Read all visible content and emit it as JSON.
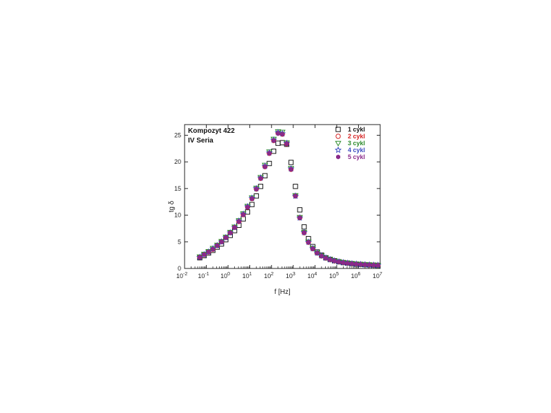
{
  "chart_data": {
    "type": "scatter",
    "xlabel": "f [Hz]",
    "ylabel": "tg δ",
    "xscale": "log",
    "xlim": [
      0.01,
      10000000
    ],
    "ylim": [
      0,
      27
    ],
    "x_ticks": [
      {
        "value": 0.01,
        "mantissa": "10",
        "exp": "-2"
      },
      {
        "value": 0.1,
        "mantissa": "10",
        "exp": "-1"
      },
      {
        "value": 1,
        "mantissa": "10",
        "exp": "0"
      },
      {
        "value": 10,
        "mantissa": "10",
        "exp": "1"
      },
      {
        "value": 100,
        "mantissa": "10",
        "exp": "2"
      },
      {
        "value": 1000,
        "mantissa": "10",
        "exp": "3"
      },
      {
        "value": 10000,
        "mantissa": "10",
        "exp": "4"
      },
      {
        "value": 100000,
        "mantissa": "10",
        "exp": "5"
      },
      {
        "value": 1000000,
        "mantissa": "10",
        "exp": "6"
      },
      {
        "value": 10000000,
        "mantissa": "10",
        "exp": "7"
      }
    ],
    "y_ticks": [
      0,
      5,
      10,
      15,
      20,
      25
    ],
    "annotations": [
      "Kompozyt 422",
      "IV Seria"
    ],
    "legend_position": "top-right",
    "grid": false,
    "x": [
      0.05,
      0.079,
      0.126,
      0.2,
      0.316,
      0.5,
      0.79,
      1.26,
      2.0,
      3.16,
      5.0,
      7.9,
      12.6,
      20,
      31.6,
      50,
      79,
      126,
      200,
      316,
      500,
      790,
      1260,
      2000,
      3160,
      5000,
      7900,
      12600,
      20000,
      31600,
      50000,
      79000,
      126000,
      200000,
      316000,
      500000,
      790000,
      1260000,
      2000000,
      3160000,
      5000000,
      7900000
    ],
    "series": [
      {
        "name": "1 cykl",
        "marker": "square",
        "color": "#111111",
        "values": [
          2.0,
          2.4,
          2.9,
          3.4,
          4.0,
          4.6,
          5.4,
          6.2,
          7.1,
          8.1,
          9.3,
          10.6,
          12.0,
          13.6,
          15.4,
          17.4,
          19.7,
          22.0,
          23.5,
          23.6,
          23.3,
          19.9,
          15.4,
          11.0,
          7.8,
          5.6,
          4.1,
          3.1,
          2.5,
          2.0,
          1.7,
          1.45,
          1.25,
          1.1,
          1.0,
          0.9,
          0.82,
          0.76,
          0.7,
          0.66,
          0.62,
          0.58
        ]
      },
      {
        "name": "2 cykl",
        "marker": "circle",
        "color": "#d42020",
        "values": [
          2.1,
          2.6,
          3.1,
          3.6,
          4.3,
          5.0,
          5.8,
          6.7,
          7.7,
          8.8,
          10.1,
          11.5,
          13.1,
          14.9,
          16.9,
          19.1,
          21.6,
          24.0,
          25.4,
          25.2,
          23.4,
          18.6,
          13.6,
          9.5,
          6.7,
          4.9,
          3.7,
          2.9,
          2.35,
          1.95,
          1.65,
          1.42,
          1.24,
          1.1,
          0.99,
          0.9,
          0.83,
          0.77,
          0.72,
          0.67,
          0.63,
          0.6
        ]
      },
      {
        "name": "3 cykl",
        "marker": "triangle-down",
        "color": "#2a8a2a",
        "values": [
          2.2,
          2.7,
          3.2,
          3.8,
          4.4,
          5.1,
          5.9,
          6.8,
          7.8,
          9.0,
          10.3,
          11.7,
          13.3,
          15.1,
          17.1,
          19.4,
          21.9,
          24.3,
          25.7,
          25.6,
          23.6,
          18.8,
          13.7,
          9.6,
          6.8,
          5.0,
          3.8,
          2.95,
          2.4,
          2.0,
          1.7,
          1.46,
          1.27,
          1.12,
          1.01,
          0.92,
          0.85,
          0.78,
          0.73,
          0.68,
          0.64,
          0.61
        ]
      },
      {
        "name": "4 cykl",
        "marker": "star",
        "color": "#3a4ac0",
        "values": [
          2.1,
          2.6,
          3.1,
          3.7,
          4.3,
          5.0,
          5.8,
          6.7,
          7.7,
          8.9,
          10.2,
          11.6,
          13.2,
          15.0,
          17.0,
          19.2,
          21.7,
          24.1,
          25.5,
          25.3,
          23.5,
          18.7,
          13.6,
          9.5,
          6.75,
          4.95,
          3.75,
          2.9,
          2.37,
          1.97,
          1.67,
          1.44,
          1.25,
          1.11,
          1.0,
          0.91,
          0.84,
          0.77,
          0.72,
          0.67,
          0.63,
          0.6
        ]
      },
      {
        "name": "5 cykl",
        "marker": "hexagon",
        "color": "#8a2a8a",
        "values": [
          2.1,
          2.6,
          3.1,
          3.6,
          4.3,
          5.0,
          5.8,
          6.7,
          7.7,
          8.8,
          10.1,
          11.5,
          13.1,
          14.9,
          16.9,
          19.1,
          21.6,
          24.0,
          25.3,
          25.2,
          23.4,
          18.6,
          13.6,
          9.5,
          6.7,
          4.9,
          3.7,
          2.9,
          2.35,
          1.95,
          1.65,
          1.42,
          1.24,
          1.1,
          0.99,
          0.9,
          0.83,
          0.77,
          0.72,
          0.67,
          0.63,
          0.6
        ]
      }
    ]
  }
}
